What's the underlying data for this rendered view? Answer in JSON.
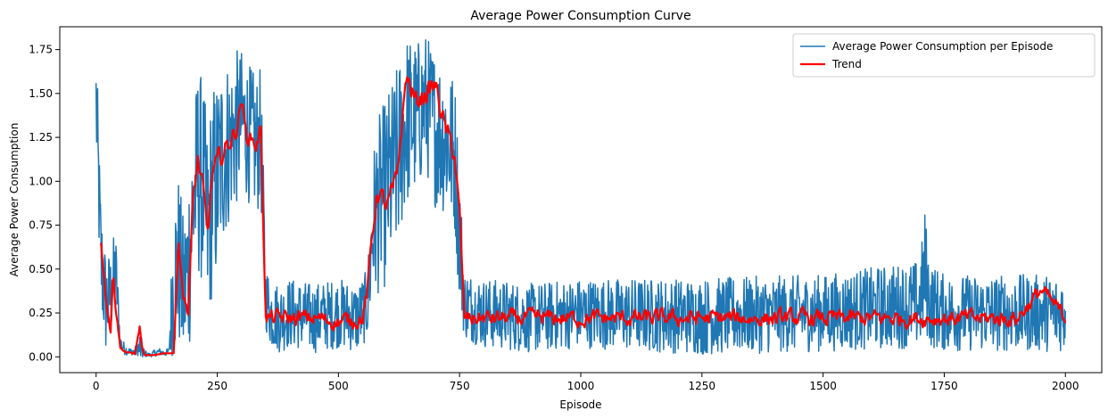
{
  "chart_data": {
    "type": "line",
    "title": "Average Power Consumption Curve",
    "xlabel": "Episode",
    "ylabel": "Average Power Consumption",
    "xlim": [
      -75,
      2075
    ],
    "ylim": [
      -0.09,
      1.88
    ],
    "xticks": [
      0,
      250,
      500,
      750,
      1000,
      1250,
      1500,
      1750,
      2000
    ],
    "xtick_labels": [
      "0",
      "250",
      "500",
      "750",
      "1000",
      "1250",
      "1500",
      "1750",
      "2000"
    ],
    "yticks": [
      0.0,
      0.25,
      0.5,
      0.75,
      1.0,
      1.25,
      1.5,
      1.75
    ],
    "ytick_labels": [
      "0.00",
      "0.25",
      "0.50",
      "0.75",
      "1.00",
      "1.25",
      "1.50",
      "1.75"
    ],
    "grid": false,
    "legend_position": "top-right",
    "series": [
      {
        "name": "Average Power Consumption per Episode",
        "color": "#1f77b4",
        "style": "noisy-raw",
        "x": [
          0,
          10,
          20,
          30,
          40,
          50,
          60,
          70,
          80,
          90,
          100,
          110,
          120,
          130,
          140,
          150,
          160,
          170,
          180,
          190,
          200,
          210,
          220,
          230,
          240,
          250,
          260,
          270,
          280,
          290,
          300,
          310,
          320,
          330,
          340,
          350,
          360,
          380,
          400,
          450,
          500,
          540,
          560,
          570,
          580,
          600,
          620,
          640,
          660,
          680,
          700,
          720,
          740,
          750,
          760,
          800,
          900,
          1000,
          1250,
          1500,
          1700,
          1710,
          1720,
          1750,
          2000
        ],
        "values": [
          1.45,
          0.55,
          0.3,
          0.35,
          0.5,
          0.08,
          0.04,
          0.03,
          0.03,
          0.05,
          0.02,
          0.01,
          0.02,
          0.03,
          0.02,
          0.03,
          0.45,
          0.55,
          0.35,
          0.5,
          0.85,
          1.05,
          1.0,
          0.7,
          0.95,
          1.0,
          1.15,
          1.2,
          1.25,
          1.3,
          1.35,
          1.3,
          1.25,
          1.2,
          1.25,
          0.35,
          0.25,
          0.22,
          0.25,
          0.22,
          0.25,
          0.22,
          0.3,
          0.7,
          0.85,
          0.95,
          1.1,
          1.35,
          1.35,
          1.45,
          1.3,
          1.25,
          1.15,
          0.7,
          0.3,
          0.25,
          0.22,
          0.25,
          0.23,
          0.25,
          0.3,
          0.5,
          0.3,
          0.25,
          0.25
        ],
        "noise": [
          0.35,
          0.35,
          0.3,
          0.25,
          0.25,
          0.05,
          0.03,
          0.02,
          0.02,
          0.1,
          0.02,
          0.01,
          0.02,
          0.02,
          0.02,
          0.02,
          0.5,
          0.5,
          0.45,
          0.55,
          0.55,
          0.6,
          0.6,
          0.6,
          0.6,
          0.6,
          0.55,
          0.5,
          0.45,
          0.45,
          0.4,
          0.4,
          0.4,
          0.4,
          0.4,
          0.2,
          0.2,
          0.2,
          0.2,
          0.2,
          0.2,
          0.2,
          0.2,
          0.45,
          0.5,
          0.55,
          0.55,
          0.5,
          0.45,
          0.4,
          0.45,
          0.45,
          0.45,
          0.4,
          0.2,
          0.2,
          0.2,
          0.2,
          0.22,
          0.22,
          0.25,
          0.35,
          0.25,
          0.22,
          0.22
        ]
      },
      {
        "name": "Trend",
        "color": "#ff0000",
        "style": "trend",
        "x": [
          10,
          20,
          30,
          35,
          40,
          50,
          60,
          70,
          80,
          90,
          95,
          100,
          120,
          140,
          160,
          170,
          180,
          190,
          200,
          210,
          220,
          230,
          240,
          250,
          260,
          270,
          280,
          290,
          300,
          310,
          320,
          330,
          340,
          350,
          360,
          400,
          450,
          500,
          550,
          560,
          570,
          580,
          600,
          620,
          640,
          660,
          680,
          700,
          720,
          740,
          750,
          760,
          800,
          900,
          1000,
          1100,
          1200,
          1300,
          1400,
          1500,
          1600,
          1700,
          1800,
          1900,
          1950,
          2000
        ],
        "values": [
          0.66,
          0.35,
          0.15,
          0.5,
          0.3,
          0.05,
          0.03,
          0.02,
          0.02,
          0.17,
          0.05,
          0.01,
          0.01,
          0.02,
          0.02,
          0.66,
          0.35,
          0.25,
          0.9,
          1.12,
          0.95,
          0.7,
          1.05,
          1.1,
          1.15,
          1.2,
          1.25,
          1.3,
          1.47,
          1.25,
          1.25,
          1.2,
          1.3,
          0.22,
          0.22,
          0.22,
          0.22,
          0.2,
          0.22,
          0.38,
          0.7,
          0.95,
          0.85,
          1.0,
          1.6,
          1.45,
          1.5,
          1.55,
          1.3,
          1.15,
          0.8,
          0.22,
          0.22,
          0.22,
          0.22,
          0.22,
          0.22,
          0.22,
          0.22,
          0.22,
          0.22,
          0.22,
          0.22,
          0.22,
          0.38,
          0.22
        ],
        "noise": [
          0.05,
          0.05,
          0.05,
          0.05,
          0.05,
          0.01,
          0.01,
          0.01,
          0.01,
          0.02,
          0.01,
          0.0,
          0.0,
          0.0,
          0.0,
          0.05,
          0.05,
          0.05,
          0.08,
          0.1,
          0.12,
          0.12,
          0.12,
          0.12,
          0.12,
          0.12,
          0.1,
          0.1,
          0.08,
          0.08,
          0.08,
          0.08,
          0.08,
          0.08,
          0.09,
          0.09,
          0.09,
          0.09,
          0.09,
          0.09,
          0.12,
          0.12,
          0.12,
          0.12,
          0.12,
          0.12,
          0.12,
          0.12,
          0.12,
          0.12,
          0.1,
          0.09,
          0.09,
          0.09,
          0.09,
          0.09,
          0.09,
          0.09,
          0.09,
          0.09,
          0.09,
          0.09,
          0.09,
          0.09,
          0.09,
          0.09
        ]
      }
    ]
  }
}
